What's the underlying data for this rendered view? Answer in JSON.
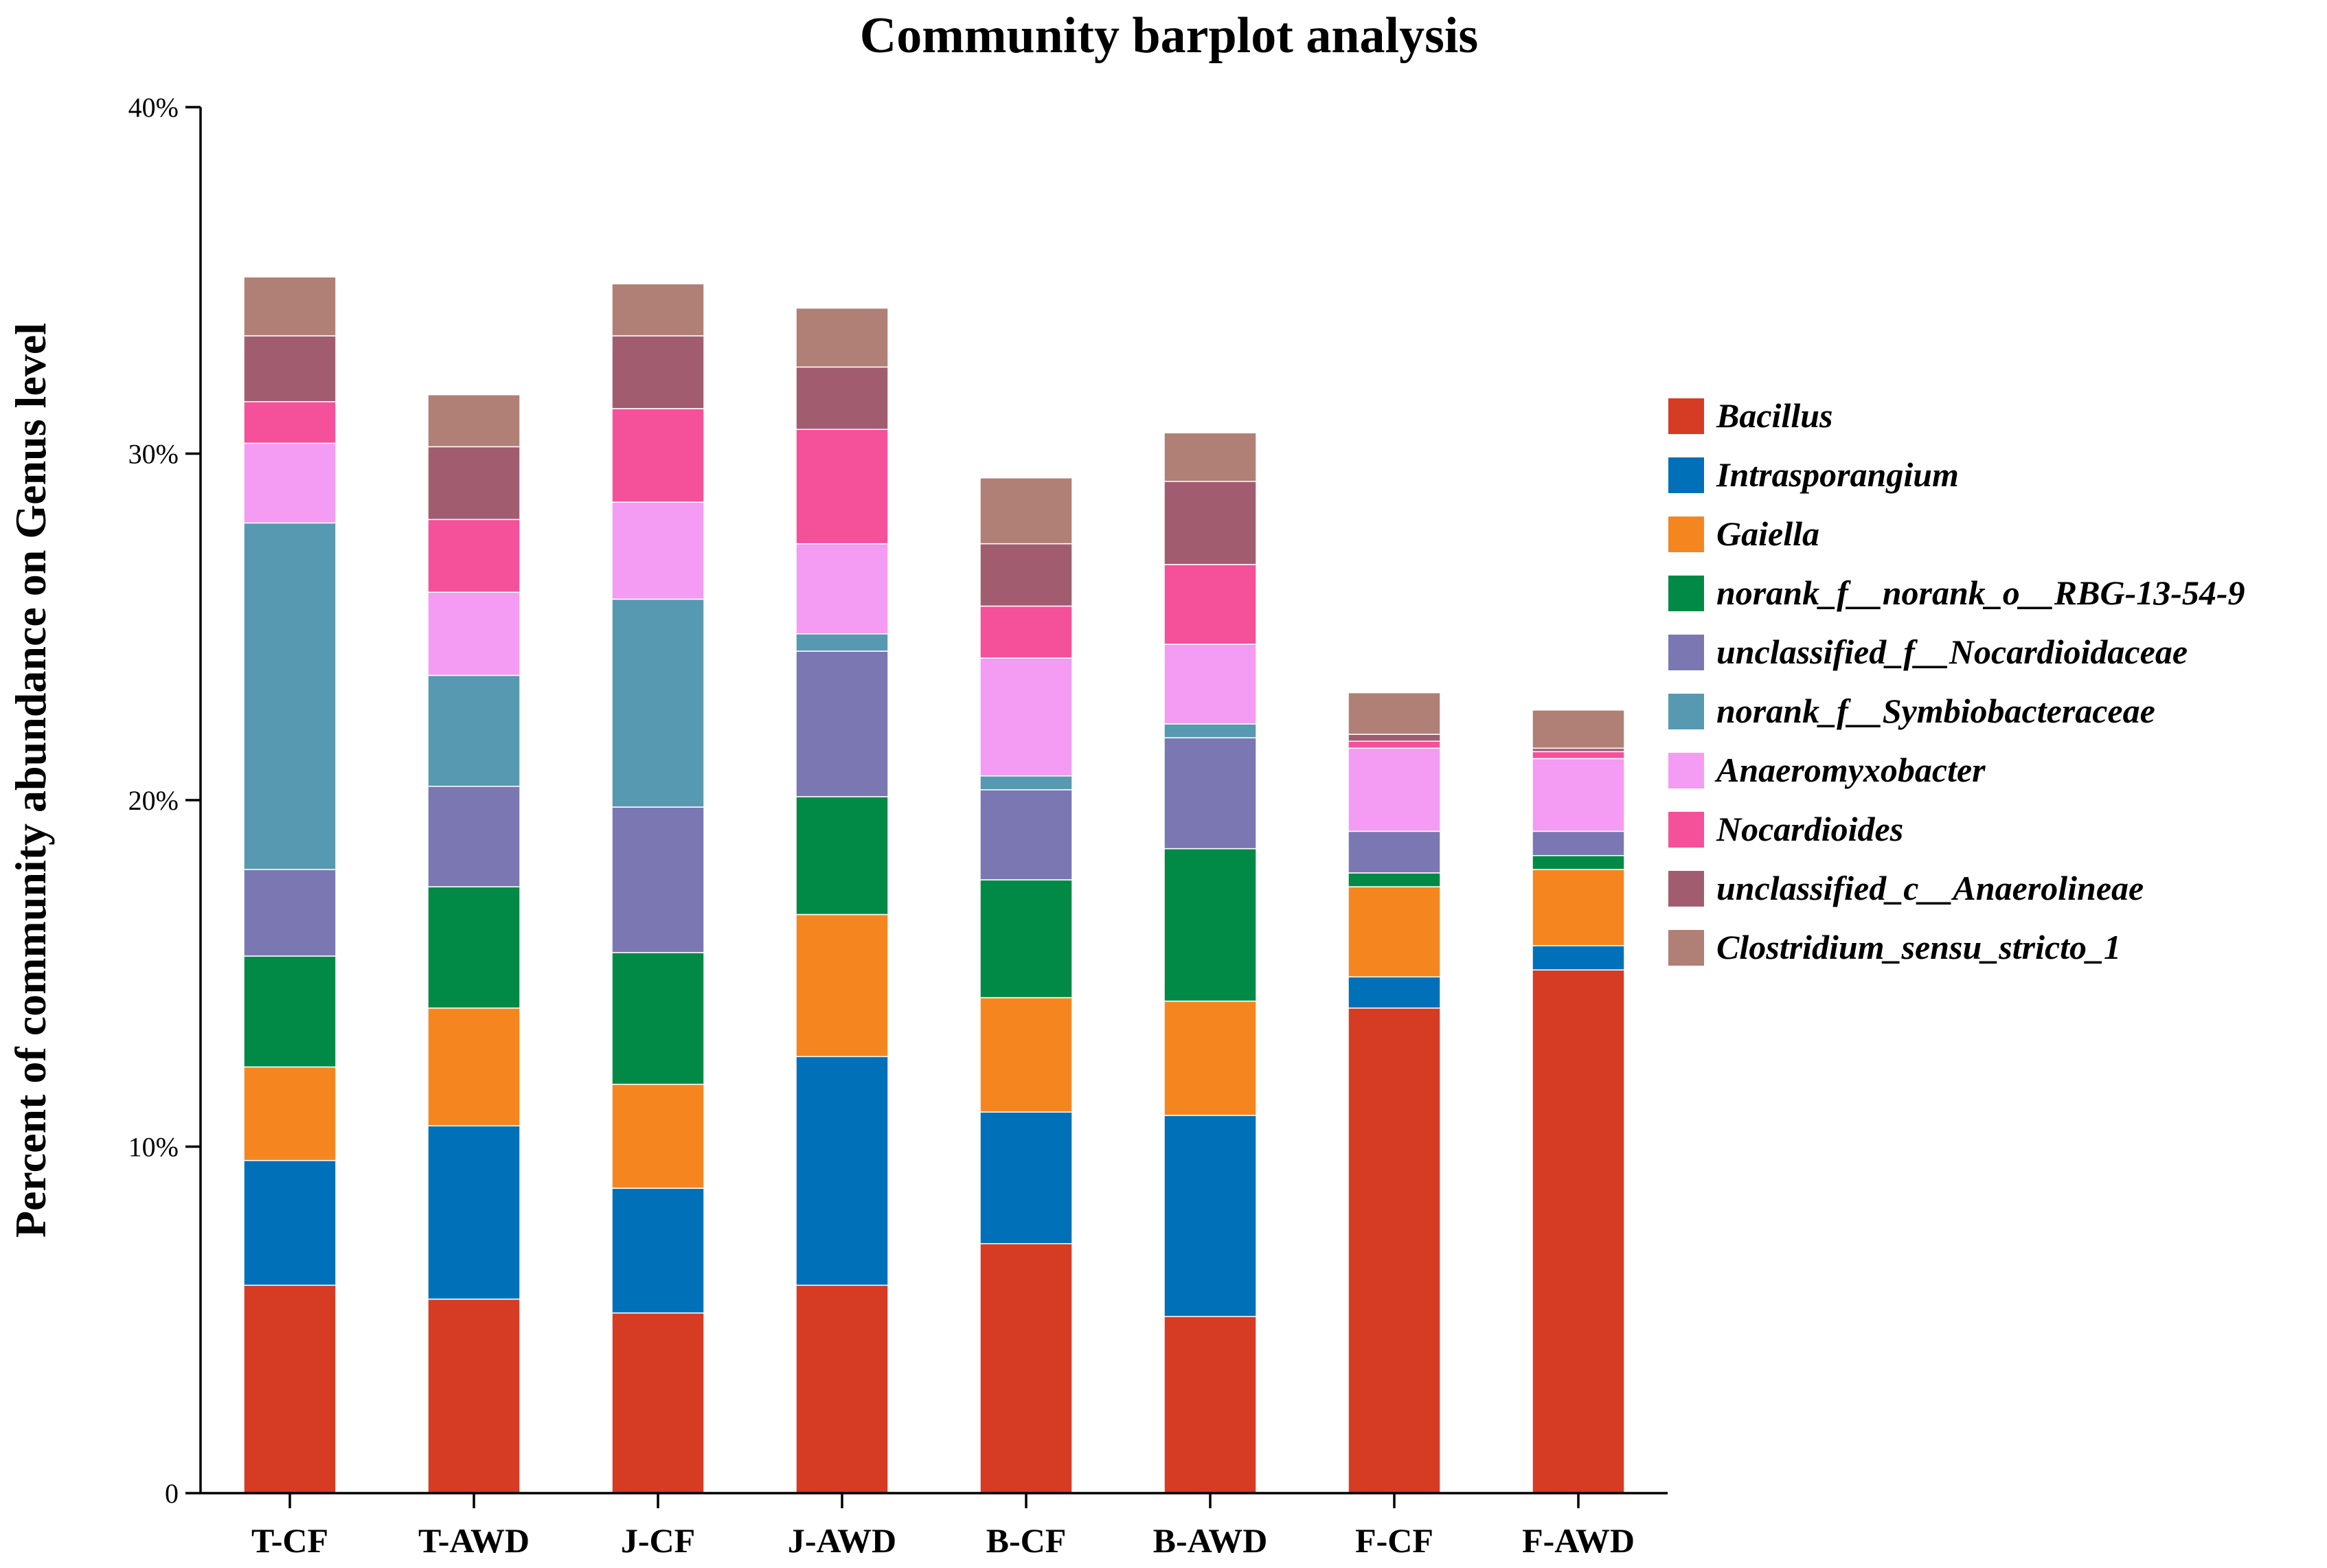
{
  "chart_data": {
    "type": "bar",
    "stacked": true,
    "title": "Community barplot analysis",
    "xlabel": "",
    "ylabel": "Percent of community abundance on Genus level",
    "ylim": [
      0,
      40
    ],
    "yticks": [
      0,
      10,
      20,
      30,
      40
    ],
    "ytick_labels": [
      "0",
      "10%",
      "20%",
      "30%",
      "40%"
    ],
    "grid": false,
    "legend_position": "right",
    "categories": [
      "T-CF",
      "T-AWD",
      "J-CF",
      "J-AWD",
      "B-CF",
      "B-AWD",
      "F-CF",
      "F-AWD"
    ],
    "series": [
      {
        "name": "Bacillus",
        "color": "#D63B24",
        "values": [
          6.0,
          5.6,
          5.2,
          6.0,
          7.2,
          5.1,
          14.0,
          15.1
        ]
      },
      {
        "name": "Intrasporangium",
        "color": "#0070B8",
        "values": [
          3.6,
          5.0,
          3.6,
          6.6,
          3.8,
          5.8,
          0.9,
          0.7
        ]
      },
      {
        "name": "Gaiella",
        "color": "#F5861F",
        "values": [
          2.7,
          3.4,
          3.0,
          4.1,
          3.3,
          3.3,
          2.6,
          2.2
        ]
      },
      {
        "name": "norank_f__norank_o__RBG-13-54-9",
        "color": "#008A45",
        "values": [
          3.2,
          3.5,
          3.8,
          3.4,
          3.4,
          4.4,
          0.4,
          0.4
        ]
      },
      {
        "name": "unclassified_f__Nocardioidaceae",
        "color": "#7B77B2",
        "values": [
          2.5,
          2.9,
          4.2,
          4.2,
          2.6,
          3.2,
          1.2,
          0.7
        ]
      },
      {
        "name": "norank_f__Symbiobacteraceae",
        "color": "#5799B0",
        "values": [
          10.0,
          3.2,
          6.0,
          0.5,
          0.4,
          0.4,
          0.0,
          0.0
        ]
      },
      {
        "name": "Anaeromyxobacter",
        "color": "#F49BF3",
        "values": [
          2.3,
          2.4,
          2.8,
          2.6,
          3.4,
          2.3,
          2.4,
          2.1
        ]
      },
      {
        "name": "Nocardioides",
        "color": "#F5509A",
        "values": [
          1.2,
          2.1,
          2.7,
          3.3,
          1.5,
          2.3,
          0.2,
          0.2
        ]
      },
      {
        "name": "unclassified_c__Anaerolineae",
        "color": "#A15D6F",
        "values": [
          1.9,
          2.1,
          2.1,
          1.8,
          1.8,
          2.4,
          0.2,
          0.1
        ]
      },
      {
        "name": "Clostridium_sensu_stricto_1",
        "color": "#B07F76",
        "values": [
          1.7,
          1.5,
          1.5,
          1.7,
          1.9,
          1.4,
          1.2,
          1.1
        ]
      }
    ]
  }
}
